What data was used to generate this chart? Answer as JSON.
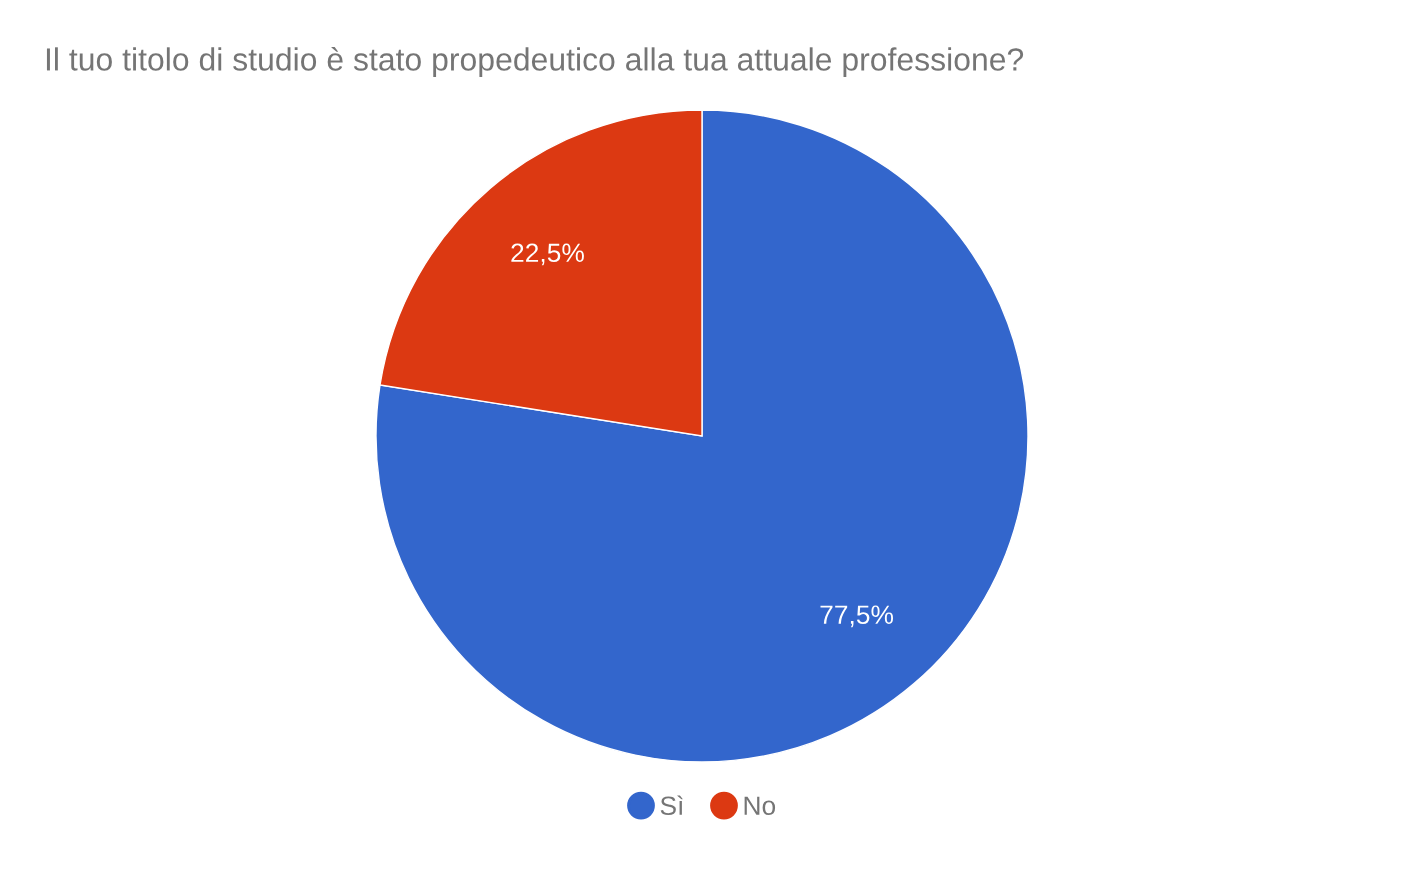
{
  "chart_data": {
    "type": "pie",
    "title": "Il tuo titolo di studio è stato propedeutico alla tua attuale professione?",
    "categories": [
      "Sì",
      "No"
    ],
    "values": [
      77.5,
      22.5
    ],
    "colors": [
      "#3366cc",
      "#dc3912"
    ],
    "value_labels": [
      "77,5%",
      "22,5%"
    ],
    "legend": "bottom"
  }
}
